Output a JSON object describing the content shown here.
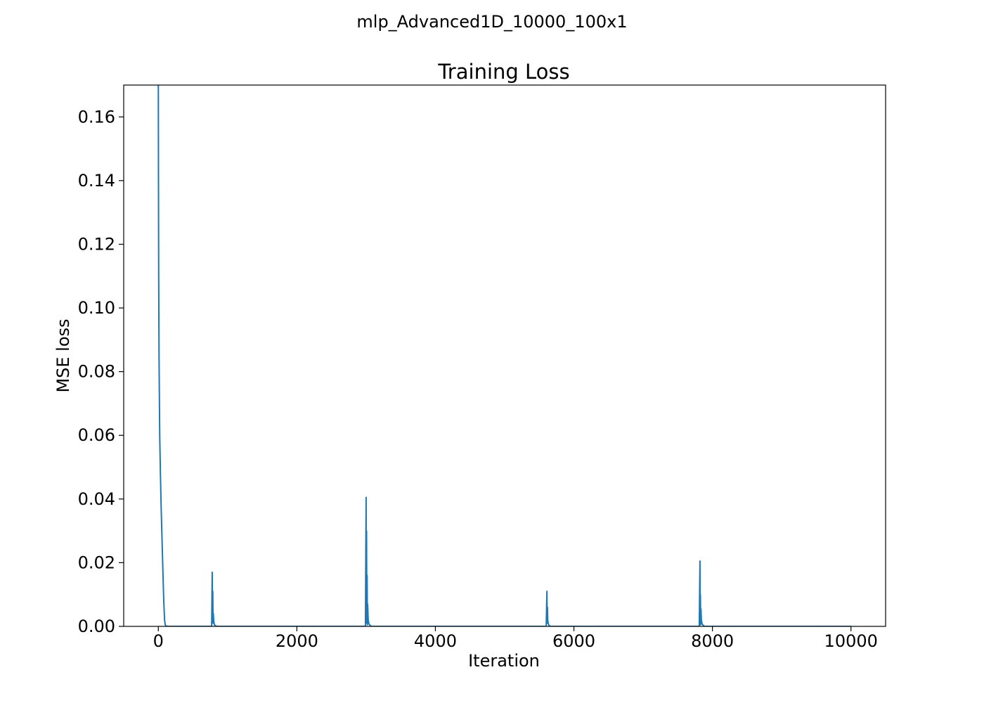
{
  "figure": {
    "suptitle": "mlp_Advanced1D_10000_100x1"
  },
  "chart_data": {
    "type": "line",
    "title": "Training Loss",
    "xlabel": "Iteration",
    "ylabel": "MSE loss",
    "xlim": [
      -500,
      10500
    ],
    "ylim": [
      0,
      0.17
    ],
    "xticks": [
      0,
      2000,
      4000,
      6000,
      8000,
      10000
    ],
    "xtick_labels": [
      "0",
      "2000",
      "4000",
      "6000",
      "8000",
      "10000"
    ],
    "yticks": [
      0,
      0.02,
      0.04,
      0.06,
      0.08,
      0.1,
      0.12,
      0.14,
      0.16
    ],
    "ytick_labels": [
      "0.00",
      "0.02",
      "0.04",
      "0.06",
      "0.08",
      "0.10",
      "0.12",
      "0.14",
      "0.16"
    ],
    "grid": false,
    "line_color": "#1f77b4",
    "series": [
      {
        "x": [
          0,
          2,
          5,
          10,
          20,
          30,
          40,
          50,
          60,
          70,
          80,
          90,
          100,
          110,
          120,
          150,
          770,
          778,
          782,
          786,
          790,
          794,
          800,
          810,
          830,
          850,
          2990,
          3000,
          3002,
          3006,
          3010,
          3014,
          3018,
          3022,
          3030,
          3040,
          3060,
          3080,
          5600,
          5610,
          5614,
          5618,
          5622,
          5630,
          5640,
          5660,
          7810,
          7820,
          7823,
          7826,
          7830,
          7834,
          7840,
          7850,
          7870,
          7890,
          10000
        ],
        "y": [
          0.1705,
          0.14,
          0.11,
          0.085,
          0.06,
          0.048,
          0.038,
          0.03,
          0.022,
          0.014,
          0.007,
          0.002,
          0.0005,
          0.0001,
          5e-05,
          0.0,
          0.0,
          0.017,
          0.002,
          0.011,
          0.001,
          0.004,
          0.0015,
          0.0005,
          0.0001,
          0.0,
          0.0,
          0.0405,
          0.002,
          0.03,
          0.001,
          0.016,
          0.0005,
          0.007,
          0.002,
          0.0008,
          0.0002,
          0.0,
          0.0,
          0.011,
          0.001,
          0.006,
          0.002,
          0.0008,
          0.0003,
          0.0,
          0.0,
          0.0205,
          0.001,
          0.01,
          0.0005,
          0.0055,
          0.002,
          0.0008,
          0.0002,
          0.0,
          0.0
        ]
      }
    ]
  }
}
